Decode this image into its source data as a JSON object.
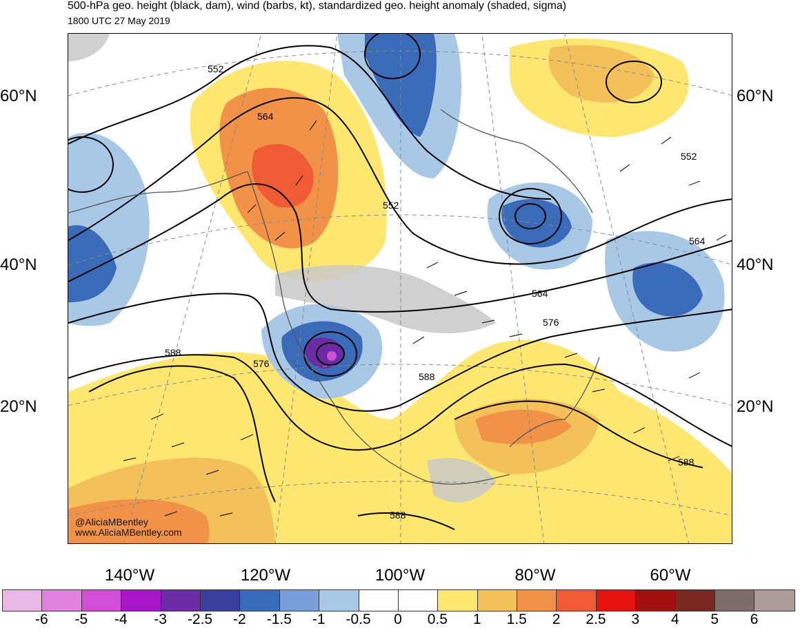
{
  "header": {
    "title": "500-hPa geo. height (black, dam), wind (barbs, kt), standardized geo. height anomaly (shaded, sigma)",
    "subtitle": "1800 UTC 27 May 2019"
  },
  "map": {
    "lat_labels": [
      "60°N",
      "40°N",
      "20°N"
    ],
    "lon_labels": [
      "140°W",
      "120°W",
      "100°W",
      "80°W",
      "60°W"
    ],
    "contour_labels": [
      "552",
      "564",
      "552",
      "552",
      "564",
      "564",
      "576",
      "588",
      "576",
      "588",
      "588",
      "588"
    ],
    "credit": [
      "@AliciaMBentley",
      "www.AliciaMBentley.com"
    ]
  },
  "colorbar": {
    "ticks": [
      "-6",
      "-5",
      "-4",
      "-3",
      "-2.5",
      "-2",
      "-1.5",
      "-1",
      "-0.5",
      "0",
      "0.5",
      "1",
      "1.5",
      "2",
      "2.5",
      "3",
      "4",
      "5",
      "6"
    ],
    "colors": [
      "#e9b9e6",
      "#e283e0",
      "#d04fd6",
      "#a617c8",
      "#6a2ba5",
      "#3a3f9d",
      "#3a6bb9",
      "#7b9fd8",
      "#a8c8e6",
      "#ffffff",
      "#ffffff",
      "#fde771",
      "#f4c05a",
      "#f29248",
      "#f05a35",
      "#e4130f",
      "#a10f0e",
      "#7a2a22",
      "#7c6d6c",
      "#ab9b9b"
    ]
  }
}
